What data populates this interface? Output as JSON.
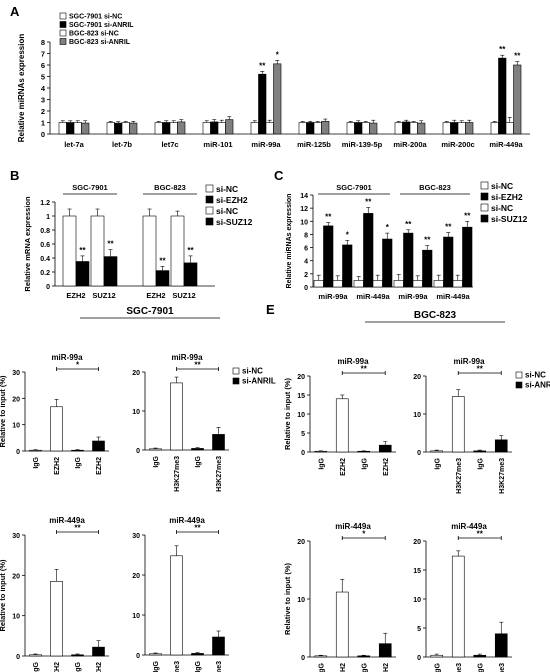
{
  "chart_data": [
    {
      "id": "A",
      "type": "bar",
      "panel_label": "A",
      "ylabel": "Relative miRNAs expression",
      "ylim": [
        0,
        8
      ],
      "yticks": [
        0,
        1,
        2,
        3,
        4,
        5,
        6,
        7,
        8
      ],
      "categories": [
        "let-7a",
        "let-7b",
        "let7c",
        "miR-101",
        "miR-99a",
        "miR-125b",
        "miR-139-5p",
        "miR-200a",
        "miR-200c",
        "miR-449a"
      ],
      "series": [
        {
          "name": "SGC-7901 si-NC",
          "color": "#ffffff",
          "values": [
            1,
            1,
            1,
            1,
            1,
            1,
            1,
            1,
            1,
            1
          ],
          "errors": [
            0.15,
            0.1,
            0.1,
            0.15,
            0.15,
            0.1,
            0.1,
            0.1,
            0.1,
            0.1
          ]
        },
        {
          "name": "SGC-7901 si-ANRIL",
          "color": "#000000",
          "values": [
            1.0,
            0.95,
            1.0,
            1.05,
            5.2,
            1.0,
            1.0,
            1.05,
            1.0,
            6.6
          ],
          "errors": [
            0.15,
            0.12,
            0.15,
            0.2,
            0.25,
            0.1,
            0.15,
            0.15,
            0.2,
            0.25
          ]
        },
        {
          "name": "BGC-823 si-NC",
          "color": "#ffffff",
          "values": [
            1,
            1,
            1,
            1,
            1,
            1,
            1,
            1,
            1,
            1
          ],
          "errors": [
            0.15,
            0.1,
            0.15,
            0.2,
            0.2,
            0.1,
            0.1,
            0.1,
            0.15,
            0.45
          ]
        },
        {
          "name": "BGC-823 si-ANRIL",
          "color": "#808080",
          "values": [
            0.95,
            0.95,
            1.05,
            1.25,
            6.1,
            1.1,
            0.95,
            0.95,
            1.0,
            6.0
          ],
          "errors": [
            0.2,
            0.15,
            0.2,
            0.25,
            0.3,
            0.2,
            0.25,
            0.2,
            0.2,
            0.3
          ]
        }
      ],
      "annotations": [
        {
          "category": "miR-99a",
          "series": 1,
          "text": "**"
        },
        {
          "category": "miR-99a",
          "series": 3,
          "text": "*"
        },
        {
          "category": "miR-449a",
          "series": 1,
          "text": "**"
        },
        {
          "category": "miR-449a",
          "series": 3,
          "text": "**"
        }
      ]
    },
    {
      "id": "B",
      "type": "bar",
      "panel_label": "B",
      "ylabel": "Relative mRNA expression",
      "ylim": [
        0,
        1.2
      ],
      "yticks": [
        0,
        0.2,
        0.4,
        0.6,
        0.8,
        1,
        1.2
      ],
      "groups": [
        "SGC-7901",
        "BGC-823"
      ],
      "categories": [
        "EZH2",
        "SUZ12",
        "EZH2",
        "SUZ12"
      ],
      "bars": [
        {
          "value": 1.0,
          "err": 0.1,
          "fill": "#ffffff"
        },
        {
          "value": 0.35,
          "err": 0.08,
          "fill": "#000000",
          "sig": "**"
        },
        {
          "value": 1.0,
          "err": 0.1,
          "fill": "#ffffff"
        },
        {
          "value": 0.42,
          "err": 0.1,
          "fill": "#000000",
          "sig": "**"
        },
        {
          "value": 1.0,
          "err": 0.1,
          "fill": "#ffffff"
        },
        {
          "value": 0.22,
          "err": 0.06,
          "fill": "#000000",
          "sig": "**"
        },
        {
          "value": 1.0,
          "err": 0.07,
          "fill": "#ffffff"
        },
        {
          "value": 0.33,
          "err": 0.1,
          "fill": "#000000",
          "sig": "**"
        }
      ],
      "legend": [
        {
          "name": "si-NC",
          "color": "#ffffff"
        },
        {
          "name": "si-EZH2",
          "color": "#000000"
        },
        {
          "name": "si-NC",
          "color": "#ffffff"
        },
        {
          "name": "si-SUZ12",
          "color": "#000000"
        }
      ]
    },
    {
      "id": "C",
      "type": "bar",
      "panel_label": "C",
      "ylabel": "Relative miRNAs expression",
      "ylim": [
        0,
        14
      ],
      "yticks": [
        0,
        2,
        4,
        6,
        8,
        10,
        12,
        14
      ],
      "groups": [
        "SGC-7901",
        "BGC-823"
      ],
      "categories": [
        "miR-99a",
        "miR-449a",
        "miR-99a",
        "miR-449a"
      ],
      "series": [
        {
          "name": "si-NC",
          "color": "#ffffff",
          "values": [
            1,
            1,
            1,
            1
          ],
          "errors": [
            0.8,
            0.6,
            0.9,
            0.8
          ]
        },
        {
          "name": "si-EZH2",
          "color": "#000000",
          "values": [
            9.3,
            11.2,
            8.2,
            7.6
          ],
          "errors": [
            0.5,
            0.9,
            0.5,
            0.7
          ]
        },
        {
          "name": "si-NC",
          "color": "#ffffff",
          "values": [
            1,
            1,
            1,
            1
          ],
          "errors": [
            0.7,
            0.8,
            0.7,
            0.8
          ]
        },
        {
          "name": "si-SUZ12",
          "color": "#000000",
          "values": [
            6.4,
            7.3,
            5.6,
            9.1
          ],
          "errors": [
            0.7,
            0.9,
            0.7,
            0.9
          ]
        }
      ],
      "annotations_text": [
        [
          "**",
          "**",
          "**",
          "**"
        ],
        [
          "*",
          "*",
          "**",
          "**"
        ]
      ],
      "legend": [
        {
          "name": "si-NC",
          "color": "#ffffff"
        },
        {
          "name": "si-EZH2",
          "color": "#000000"
        },
        {
          "name": "si-NC",
          "color": "#ffffff"
        },
        {
          "name": "si-SUZ12",
          "color": "#000000"
        }
      ]
    },
    {
      "id": "D1",
      "type": "bar",
      "panel_label": "D",
      "header": "SGC-7901",
      "title": "miR-99a",
      "ylabel": "Relative to input (%)",
      "ylim": [
        0,
        30
      ],
      "yticks": [
        0,
        10,
        20,
        30
      ],
      "categories": [
        "IgG",
        "EZH2",
        "IgG",
        "EZH2"
      ],
      "values": [
        0.3,
        16.8,
        0.3,
        3.8
      ],
      "errors": [
        0.2,
        2.8,
        0.2,
        1.5
      ],
      "fills": [
        "#ffffff",
        "#ffffff",
        "#000000",
        "#000000"
      ],
      "sig": "*",
      "sig_span": [
        1,
        3
      ]
    },
    {
      "id": "D2",
      "type": "bar",
      "title": "miR-99a",
      "ylim": [
        0,
        20
      ],
      "yticks": [
        0,
        10,
        20
      ],
      "categories": [
        "IgG",
        "H3K27me3",
        "IgG",
        "H3K27me3"
      ],
      "values": [
        0.3,
        17.2,
        0.4,
        4.0
      ],
      "errors": [
        0.2,
        1.5,
        0.2,
        1.8
      ],
      "fills": [
        "#ffffff",
        "#ffffff",
        "#000000",
        "#000000"
      ],
      "sig": "**",
      "sig_span": [
        1,
        3
      ],
      "legend": [
        {
          "name": "si-NC",
          "color": "#ffffff"
        },
        {
          "name": "si-ANRIL",
          "color": "#000000"
        }
      ]
    },
    {
      "id": "D3",
      "type": "bar",
      "title": "miR-449a",
      "ylabel": "Relative to input (%)",
      "ylim": [
        0,
        30
      ],
      "yticks": [
        0,
        10,
        20,
        30
      ],
      "categories": [
        "IgG",
        "EZH2",
        "IgG",
        "EZH2"
      ],
      "values": [
        0.3,
        18.5,
        0.3,
        2.2
      ],
      "errors": [
        0.2,
        3.0,
        0.2,
        1.6
      ],
      "fills": [
        "#ffffff",
        "#ffffff",
        "#000000",
        "#000000"
      ],
      "sig": "**",
      "sig_span": [
        1,
        3
      ]
    },
    {
      "id": "D4",
      "type": "bar",
      "title": "miR-449a",
      "ylim": [
        0,
        30
      ],
      "yticks": [
        0,
        10,
        20,
        30
      ],
      "categories": [
        "IgG",
        "H3K27me3",
        "IgG",
        "H3K27me3"
      ],
      "values": [
        0.3,
        24.8,
        0.4,
        4.5
      ],
      "errors": [
        0.2,
        2.5,
        0.2,
        1.5
      ],
      "fills": [
        "#ffffff",
        "#ffffff",
        "#000000",
        "#000000"
      ],
      "sig": "**",
      "sig_span": [
        1,
        3
      ]
    },
    {
      "id": "E1",
      "type": "bar",
      "panel_label": "E",
      "header": "BGC-823",
      "title": "miR-99a",
      "ylabel": "Relative to input (%)",
      "ylim": [
        0,
        20
      ],
      "yticks": [
        0,
        5,
        10,
        15,
        20
      ],
      "categories": [
        "IgG",
        "EZH2",
        "IgG",
        "EZH2"
      ],
      "values": [
        0.2,
        14.0,
        0.2,
        1.8
      ],
      "errors": [
        0.1,
        1.0,
        0.1,
        0.9
      ],
      "fills": [
        "#ffffff",
        "#ffffff",
        "#000000",
        "#000000"
      ],
      "sig": "**",
      "sig_span": [
        1,
        3
      ]
    },
    {
      "id": "E2",
      "type": "bar",
      "title": "miR-99a",
      "ylim": [
        0,
        20
      ],
      "yticks": [
        0,
        10,
        20
      ],
      "categories": [
        "IgG",
        "H3K27me3",
        "IgG",
        "H3K27me3"
      ],
      "values": [
        0.3,
        14.6,
        0.3,
        3.2
      ],
      "errors": [
        0.2,
        1.8,
        0.2,
        1.1
      ],
      "fills": [
        "#ffffff",
        "#ffffff",
        "#000000",
        "#000000"
      ],
      "sig": "**",
      "sig_span": [
        1,
        3
      ],
      "legend": [
        {
          "name": "si-NC",
          "color": "#ffffff"
        },
        {
          "name": "si-ANRIL",
          "color": "#000000"
        }
      ]
    },
    {
      "id": "E3",
      "type": "bar",
      "title": "miR-449a",
      "ylabel": "Relative to input (%)",
      "ylim": [
        0,
        20
      ],
      "yticks": [
        0,
        10,
        20
      ],
      "categories": [
        "IgG",
        "EZH2",
        "IgG",
        "EZH2"
      ],
      "values": [
        0.2,
        11.2,
        0.2,
        2.3
      ],
      "errors": [
        0.1,
        2.2,
        0.1,
        1.8
      ],
      "fills": [
        "#ffffff",
        "#ffffff",
        "#000000",
        "#000000"
      ],
      "sig": "*",
      "sig_span": [
        1,
        3
      ]
    },
    {
      "id": "E4",
      "type": "bar",
      "title": "miR-449a",
      "ylim": [
        0,
        20
      ],
      "yticks": [
        0,
        5,
        10,
        15,
        20
      ],
      "categories": [
        "IgG",
        "H3K27me3",
        "IgG",
        "H3K27me3"
      ],
      "values": [
        0.3,
        17.4,
        0.3,
        4.0
      ],
      "errors": [
        0.2,
        0.9,
        0.2,
        2.0
      ],
      "fills": [
        "#ffffff",
        "#ffffff",
        "#000000",
        "#000000"
      ],
      "sig": "**",
      "sig_span": [
        1,
        3
      ]
    }
  ]
}
